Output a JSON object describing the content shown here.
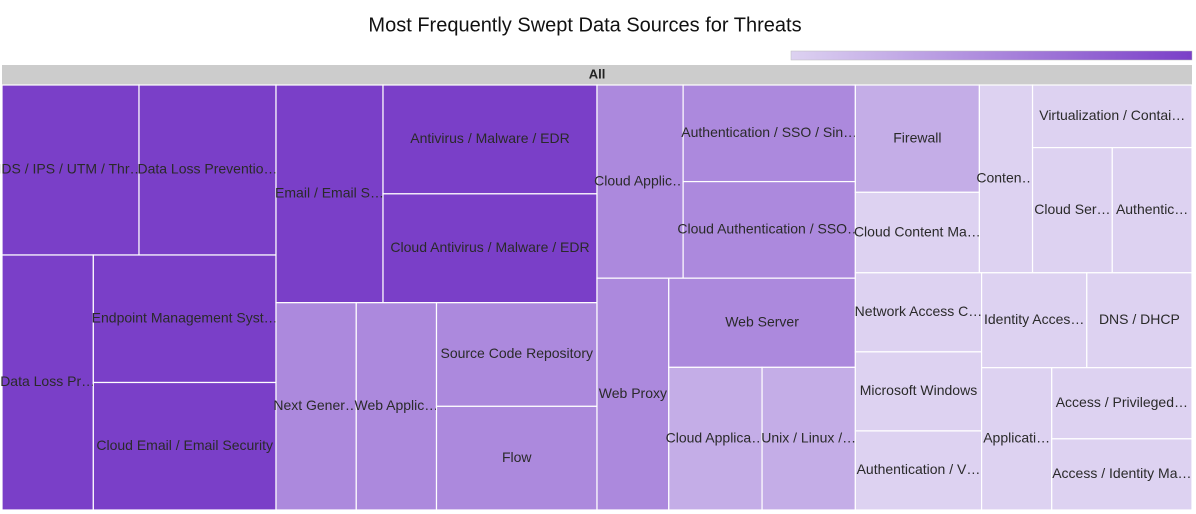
{
  "chart_data": {
    "type": "treemap",
    "title": "Most Frequently Swept Data Sources for Threats",
    "root": "All",
    "categories": [
      "IDS / IPS / UTM / Thr…",
      "Data Loss Preventio…",
      "Data Loss Pr…",
      "Endpoint Management Syst…",
      "Cloud Email / Email Security",
      "Email / Email S…",
      "Antivirus / Malware / EDR",
      "Cloud Antivirus / Malware / EDR",
      "Next Gener…",
      "Web Applic…",
      "Source Code Repository",
      "Flow",
      "Cloud Applic…",
      "Authentication / SSO / Sin…",
      "Cloud Authentication / SSO…",
      "Web Proxy",
      "Web Server",
      "Cloud Applica…",
      "Unix / Linux /…",
      "Firewall",
      "Cloud Content Ma…",
      "Conten…",
      "Virtualization / Contai…",
      "Cloud Ser…",
      "Authentic…",
      "Network Access C…",
      "Microsoft Windows",
      "Authentication / V…",
      "Identity Acces…",
      "DNS / DHCP",
      "Applicati…",
      "Access / Privileged…",
      "Access / Identity Ma…"
    ],
    "values": [
      7,
      7,
      7,
      7,
      7,
      7,
      7,
      7,
      5,
      5,
      5,
      5,
      5,
      5,
      5,
      5,
      5,
      4,
      4,
      4,
      3,
      3,
      3,
      3,
      3,
      3,
      3,
      3,
      3,
      3,
      3,
      3,
      3
    ],
    "colorscale": [
      "#ddd2f1",
      "#7a3fc8"
    ]
  }
}
